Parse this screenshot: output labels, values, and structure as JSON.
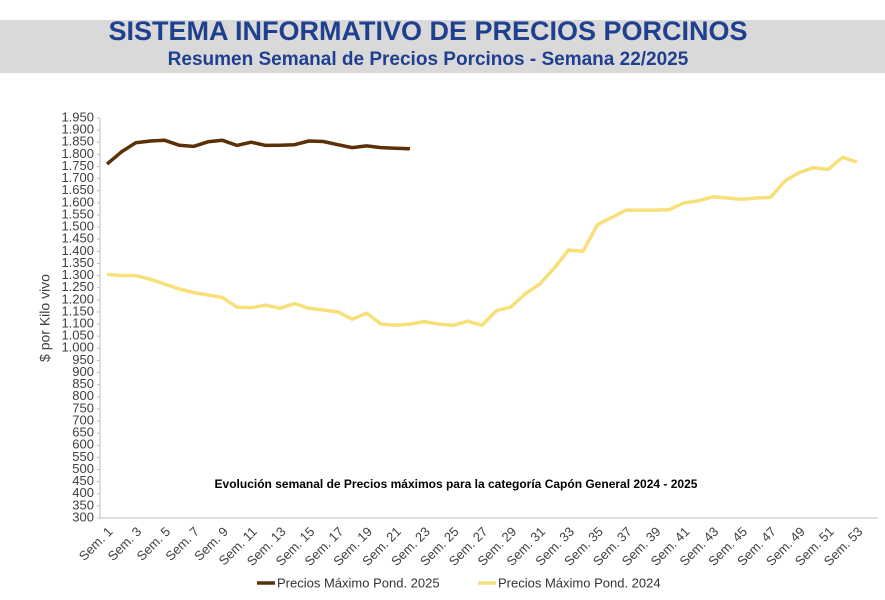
{
  "chart_data": {
    "type": "line",
    "title": "SISTEMA INFORMATIVO DE PRECIOS PORCINOS",
    "subtitle": "Resumen Semanal de Precios Porcinos - Semana 22/2025",
    "annotation": "Evolución semanal de Precios máximos para la categoría Capón General 2024 - 2025",
    "y_label": "$ por Kilo vivo",
    "categories": [
      "Sem. 1",
      null,
      "Sem. 3",
      null,
      "Sem. 5",
      null,
      "Sem. 7",
      null,
      "Sem. 9",
      null,
      "Sem. 11",
      null,
      "Sem. 13",
      null,
      "Sem. 15",
      null,
      "Sem. 17",
      null,
      "Sem. 19",
      null,
      "Sem. 21",
      null,
      "Sem. 23",
      null,
      "Sem. 25",
      null,
      "Sem. 27",
      null,
      "Sem. 29",
      null,
      "Sem. 31",
      null,
      "Sem. 33",
      null,
      "Sem. 35",
      null,
      "Sem. 37",
      null,
      "Sem. 39",
      null,
      "Sem. 41",
      null,
      "Sem. 43",
      null,
      "Sem. 45",
      null,
      "Sem. 47",
      null,
      "Sem. 49",
      null,
      "Sem. 51",
      null,
      "Sem. 53"
    ],
    "series": [
      {
        "name": "Precios Máximo Pond. 2025",
        "color": "#5c3006",
        "values": [
          1760,
          1810,
          1848,
          1855,
          1858,
          1838,
          1833,
          1852,
          1858,
          1837,
          1850,
          1837,
          1838,
          1840,
          1855,
          1853,
          1840,
          1828,
          1835,
          1828,
          1825,
          1823,
          null,
          null,
          null,
          null,
          null,
          null,
          null,
          null,
          null,
          null,
          null,
          null,
          null,
          null,
          null,
          null,
          null,
          null,
          null,
          null,
          null,
          null,
          null,
          null,
          null,
          null,
          null,
          null,
          null,
          null,
          null
        ]
      },
      {
        "name": "Precios Máximo Pond. 2024",
        "color": "#f7e07a",
        "values": [
          1305,
          1300,
          1300,
          1285,
          1265,
          1245,
          1230,
          1220,
          1210,
          1170,
          1168,
          1178,
          1165,
          1185,
          1165,
          1158,
          1150,
          1120,
          1145,
          1100,
          1095,
          1100,
          1110,
          1100,
          1095,
          1112,
          1095,
          1155,
          1170,
          1225,
          1265,
          1330,
          1405,
          1400,
          1510,
          1540,
          1570,
          1570,
          1570,
          1572,
          1600,
          1608,
          1625,
          1620,
          1615,
          1620,
          1622,
          1690,
          1725,
          1745,
          1738,
          1788,
          1768
        ]
      }
    ],
    "ylim": [
      300,
      1950
    ],
    "yticks": [
      300,
      350,
      400,
      450,
      500,
      550,
      600,
      650,
      700,
      750,
      800,
      850,
      900,
      950,
      {
        "value": 1000,
        "label": "1.000"
      },
      {
        "value": 1050,
        "label": "1.050"
      },
      {
        "value": 1100,
        "label": "1.100"
      },
      {
        "value": 1150,
        "label": "1.150"
      },
      {
        "value": 1200,
        "label": "1.200"
      },
      {
        "value": 1250,
        "label": "1.250"
      },
      {
        "value": 1300,
        "label": "1.300"
      },
      {
        "value": 1350,
        "label": "1.350"
      },
      {
        "value": 1400,
        "label": "1.400"
      },
      {
        "value": 1450,
        "label": "1.450"
      },
      {
        "value": 1500,
        "label": "1.500"
      },
      {
        "value": 1550,
        "label": "1.550"
      },
      {
        "value": 1600,
        "label": "1.600"
      },
      {
        "value": 1650,
        "label": "1.650"
      },
      {
        "value": 1700,
        "label": "1.700"
      },
      {
        "value": 1750,
        "label": "1.750"
      },
      {
        "value": 1800,
        "label": "1.800"
      },
      {
        "value": 1850,
        "label": "1.850"
      },
      {
        "value": 1900,
        "label": "1.900"
      },
      {
        "value": 1950,
        "label": "1.950"
      }
    ],
    "grid": false
  }
}
